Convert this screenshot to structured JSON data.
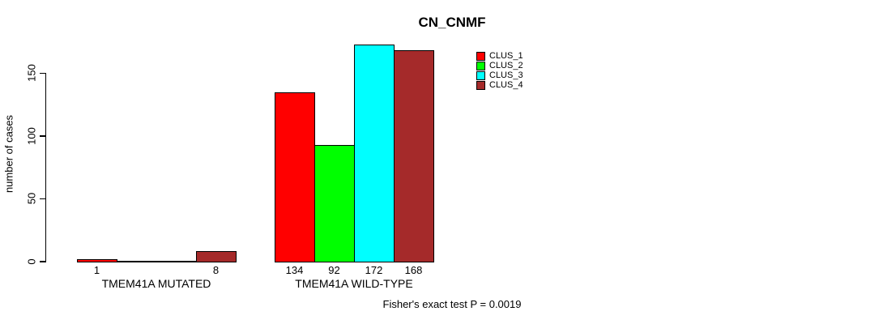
{
  "chart_data": {
    "type": "bar",
    "title": "CN_CNMF",
    "ylabel": "number of cases",
    "xlabel": "",
    "groups": [
      "TMEM41A MUTATED",
      "TMEM41A WILD-TYPE"
    ],
    "series": [
      {
        "name": "CLUS_1",
        "color": "#FF0000",
        "values": [
          1,
          134
        ]
      },
      {
        "name": "CLUS_2",
        "color": "#00FF00",
        "values": [
          0,
          92
        ]
      },
      {
        "name": "CLUS_3",
        "color": "#00FFFF",
        "values": [
          0,
          172
        ]
      },
      {
        "name": "CLUS_4",
        "color": "#A52A2A",
        "values": [
          8,
          168
        ]
      }
    ],
    "bar_value_labels": [
      [
        "1",
        "",
        "",
        "8"
      ],
      [
        "134",
        "92",
        "172",
        "168"
      ]
    ],
    "yticks": [
      0,
      50,
      100,
      150
    ],
    "ylim": [
      0,
      175
    ],
    "grid": false,
    "legend_position": "topright",
    "legend_entries": [
      "CLUS_1",
      "CLUS_2",
      "CLUS_3",
      "CLUS_4"
    ],
    "annotation": "Fisher's exact test P = 0.0019",
    "bar_border_color": "#000000",
    "axis_color": "#000000",
    "background_color": "#FFFFFF"
  }
}
